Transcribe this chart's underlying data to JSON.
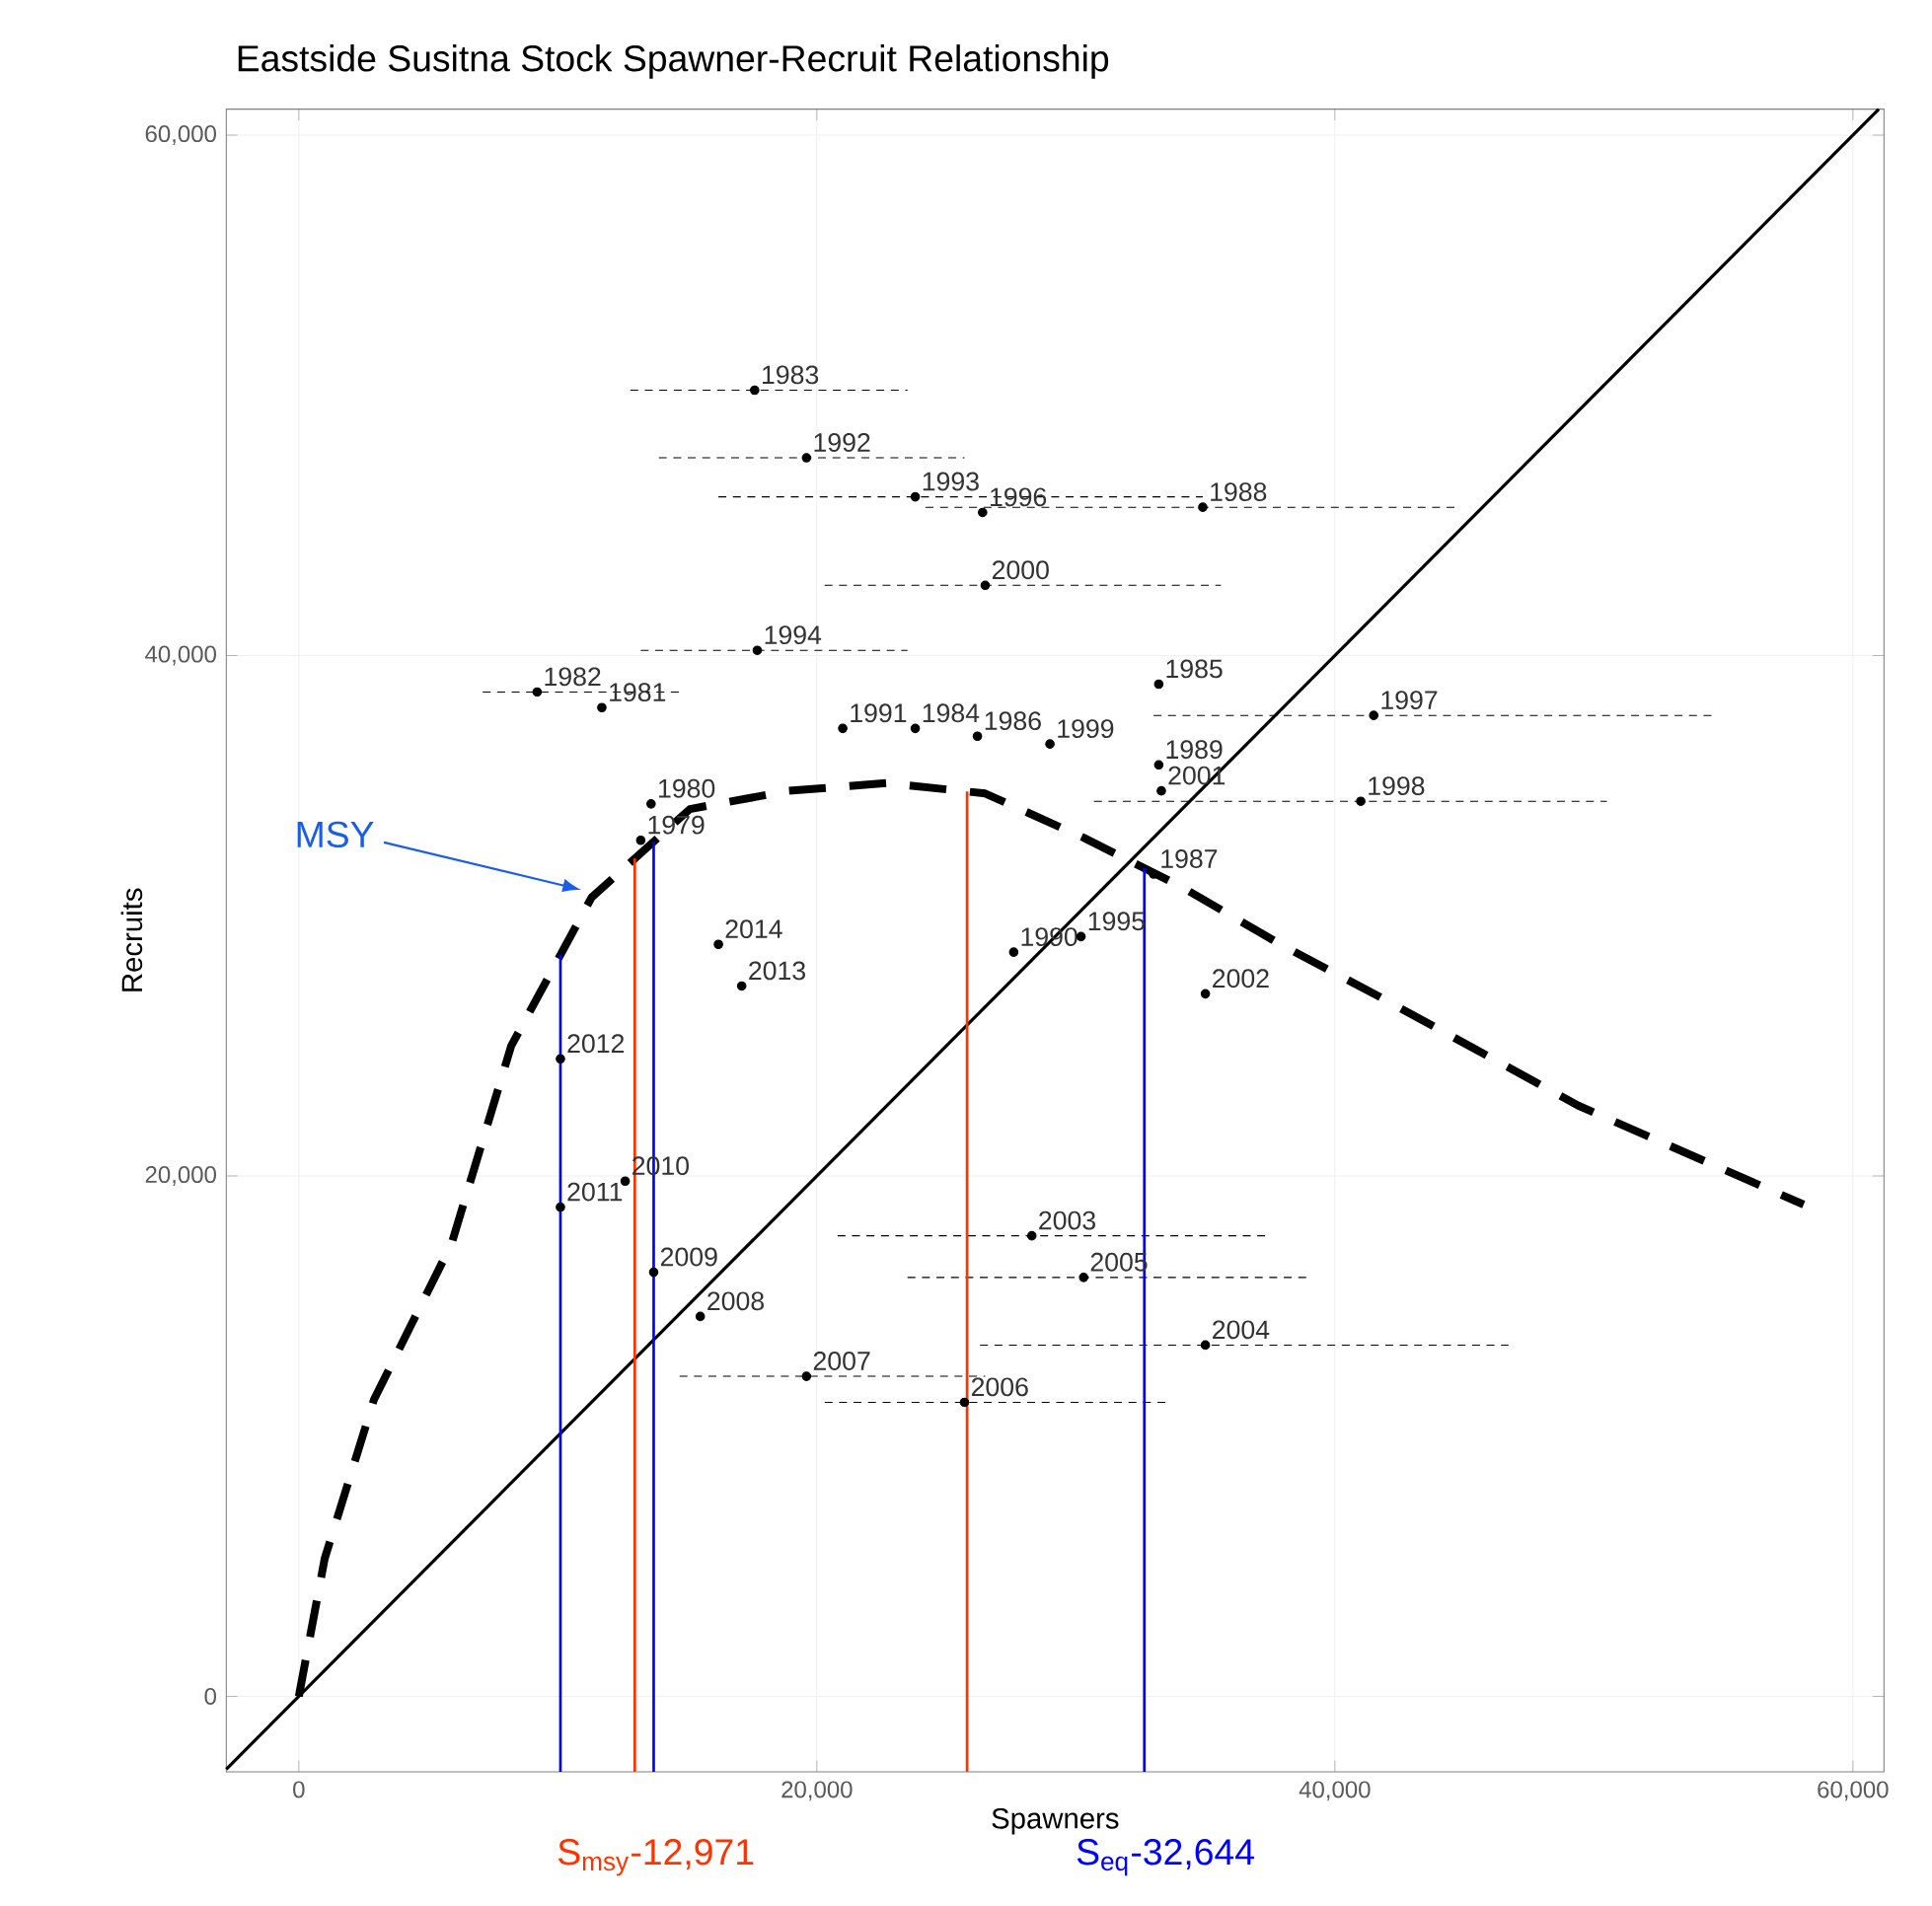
{
  "chart_data": {
    "type": "scatter",
    "title": "Eastside Susitna Stock Spawner-Recruit Relationship",
    "xlabel": "Spawners",
    "ylabel": "Recruits",
    "xlim": [
      -2800,
      61200
    ],
    "ylim": [
      -2900,
      61000
    ],
    "xticks": [
      {
        "value": 0,
        "label": "0"
      },
      {
        "value": 20000,
        "label": "20,000"
      },
      {
        "value": 40000,
        "label": "40,000"
      },
      {
        "value": 60000,
        "label": "60,000"
      }
    ],
    "yticks": [
      {
        "value": 0,
        "label": "0"
      },
      {
        "value": 20000,
        "label": "20,000"
      },
      {
        "value": 40000,
        "label": "40,000"
      },
      {
        "value": 60000,
        "label": "60,000"
      }
    ],
    "grid": true,
    "series": [
      {
        "color": "#000000",
        "marker": "circle",
        "x": [
          13200,
          13600,
          11700,
          9200,
          17600,
          23800,
          33200,
          26200,
          33000,
          34900,
          33200,
          27600,
          21000,
          19600,
          23800,
          17700,
          30200,
          26400,
          41500,
          41000,
          29000,
          26500,
          33300,
          35000,
          28300,
          35000,
          30300,
          25700,
          19600,
          15500,
          13700,
          12600,
          10100,
          10100,
          17100,
          16200
        ],
        "values": [
          32900,
          34300,
          38000,
          38600,
          50200,
          37200,
          38900,
          36900,
          31600,
          45700,
          35800,
          28600,
          37200,
          47600,
          46100,
          40200,
          29200,
          45500,
          37700,
          34400,
          36600,
          42700,
          34800,
          27000,
          17700,
          13500,
          16100,
          11300,
          12300,
          14600,
          16300,
          19800,
          18800,
          24500,
          27300,
          28900
        ],
        "xerrors": [
          null,
          null,
          null,
          [
            7100,
            14700
          ],
          [
            12800,
            23500
          ],
          null,
          null,
          null,
          null,
          [
            24200,
            44800
          ],
          null,
          null,
          null,
          [
            13900,
            25700
          ],
          [
            16200,
            34900
          ],
          [
            13200,
            23500
          ],
          null,
          null,
          [
            33000,
            54700
          ],
          [
            30700,
            50500
          ],
          null,
          [
            20300,
            35600
          ],
          null,
          null,
          [
            20800,
            37500
          ],
          [
            26300,
            46700
          ],
          [
            23500,
            39100
          ],
          [
            20300,
            33500
          ],
          [
            14700,
            26500
          ],
          null,
          null,
          null,
          null,
          null,
          null,
          null
        ]
      },
      {
        "type": "line",
        "color": "#000000",
        "line_style": "dashed",
        "x": [
          0,
          1000,
          2900,
          5900,
          8200,
          11300,
          15100,
          18900,
          22700,
          26500,
          30300,
          34100,
          37900,
          41700,
          49400,
          58100
        ],
        "values": [
          0,
          5300,
          11400,
          17400,
          25000,
          30700,
          34100,
          34800,
          35100,
          34700,
          33000,
          31100,
          28900,
          26900,
          22700,
          18900
        ]
      },
      {
        "type": "line",
        "color": "#000000",
        "line_style": "solid",
        "x": [
          -2800,
          61000
        ],
        "values": [
          -2800,
          61000
        ]
      }
    ],
    "ref_lines": [
      {
        "axis": "x",
        "value": 10100,
        "color": "#0000ff"
      },
      {
        "axis": "x",
        "value": 12971,
        "label": "S$_{msy}$-12,971",
        "color": "#ff3300"
      },
      {
        "axis": "x",
        "value": 13700,
        "color": "#0000ff"
      },
      {
        "axis": "x",
        "value": 25800,
        "color": "#ff3300"
      },
      {
        "axis": "x",
        "value": 32644,
        "label": "S$_{eq}$-32,644",
        "color": "#0000ff"
      }
    ],
    "annotations": [
      {
        "text": "MSY",
        "x": 10900,
        "y": 31000
      },
      {
        "text": "1979",
        "x": 13200,
        "y": 32900
      },
      {
        "text": "1980",
        "x": 13600,
        "y": 34300
      },
      {
        "text": "1981",
        "x": 11700,
        "y": 38000
      },
      {
        "text": "1982",
        "x": 9200,
        "y": 38600
      },
      {
        "text": "1983",
        "x": 17600,
        "y": 50200
      },
      {
        "text": "1984",
        "x": 23800,
        "y": 37200
      },
      {
        "text": "1985",
        "x": 33200,
        "y": 38900
      },
      {
        "text": "1986",
        "x": 26200,
        "y": 36900
      },
      {
        "text": "1987",
        "x": 33000,
        "y": 31600
      },
      {
        "text": "1988",
        "x": 34900,
        "y": 45700
      },
      {
        "text": "1989",
        "x": 33200,
        "y": 35800
      },
      {
        "text": "1990",
        "x": 27600,
        "y": 28600
      },
      {
        "text": "1991",
        "x": 21000,
        "y": 37200
      },
      {
        "text": "1992",
        "x": 19600,
        "y": 47600
      },
      {
        "text": "1993",
        "x": 23800,
        "y": 46100
      },
      {
        "text": "1994",
        "x": 17700,
        "y": 40200
      },
      {
        "text": "1995",
        "x": 30200,
        "y": 29200
      },
      {
        "text": "1996",
        "x": 26400,
        "y": 45500
      },
      {
        "text": "1997",
        "x": 41500,
        "y": 37700
      },
      {
        "text": "1998",
        "x": 41000,
        "y": 34400
      },
      {
        "text": "1999",
        "x": 29000,
        "y": 36600
      },
      {
        "text": "2000",
        "x": 26500,
        "y": 42700
      },
      {
        "text": "2001",
        "x": 33300,
        "y": 34800
      },
      {
        "text": "2002",
        "x": 35000,
        "y": 27000
      },
      {
        "text": "2003",
        "x": 28300,
        "y": 17700
      },
      {
        "text": "2004",
        "x": 35000,
        "y": 13500
      },
      {
        "text": "2005",
        "x": 30300,
        "y": 16100
      },
      {
        "text": "2006",
        "x": 25700,
        "y": 11300
      },
      {
        "text": "2007",
        "x": 19600,
        "y": 12300
      },
      {
        "text": "2008",
        "x": 15500,
        "y": 14600
      },
      {
        "text": "2009",
        "x": 13700,
        "y": 16300
      },
      {
        "text": "2010",
        "x": 12600,
        "y": 19800
      },
      {
        "text": "2011",
        "x": 10100,
        "y": 18800
      },
      {
        "text": "2012",
        "x": 10100,
        "y": 24500
      },
      {
        "text": "2013",
        "x": 17100,
        "y": 27300
      },
      {
        "text": "2014",
        "x": 16200,
        "y": 28900
      }
    ]
  }
}
